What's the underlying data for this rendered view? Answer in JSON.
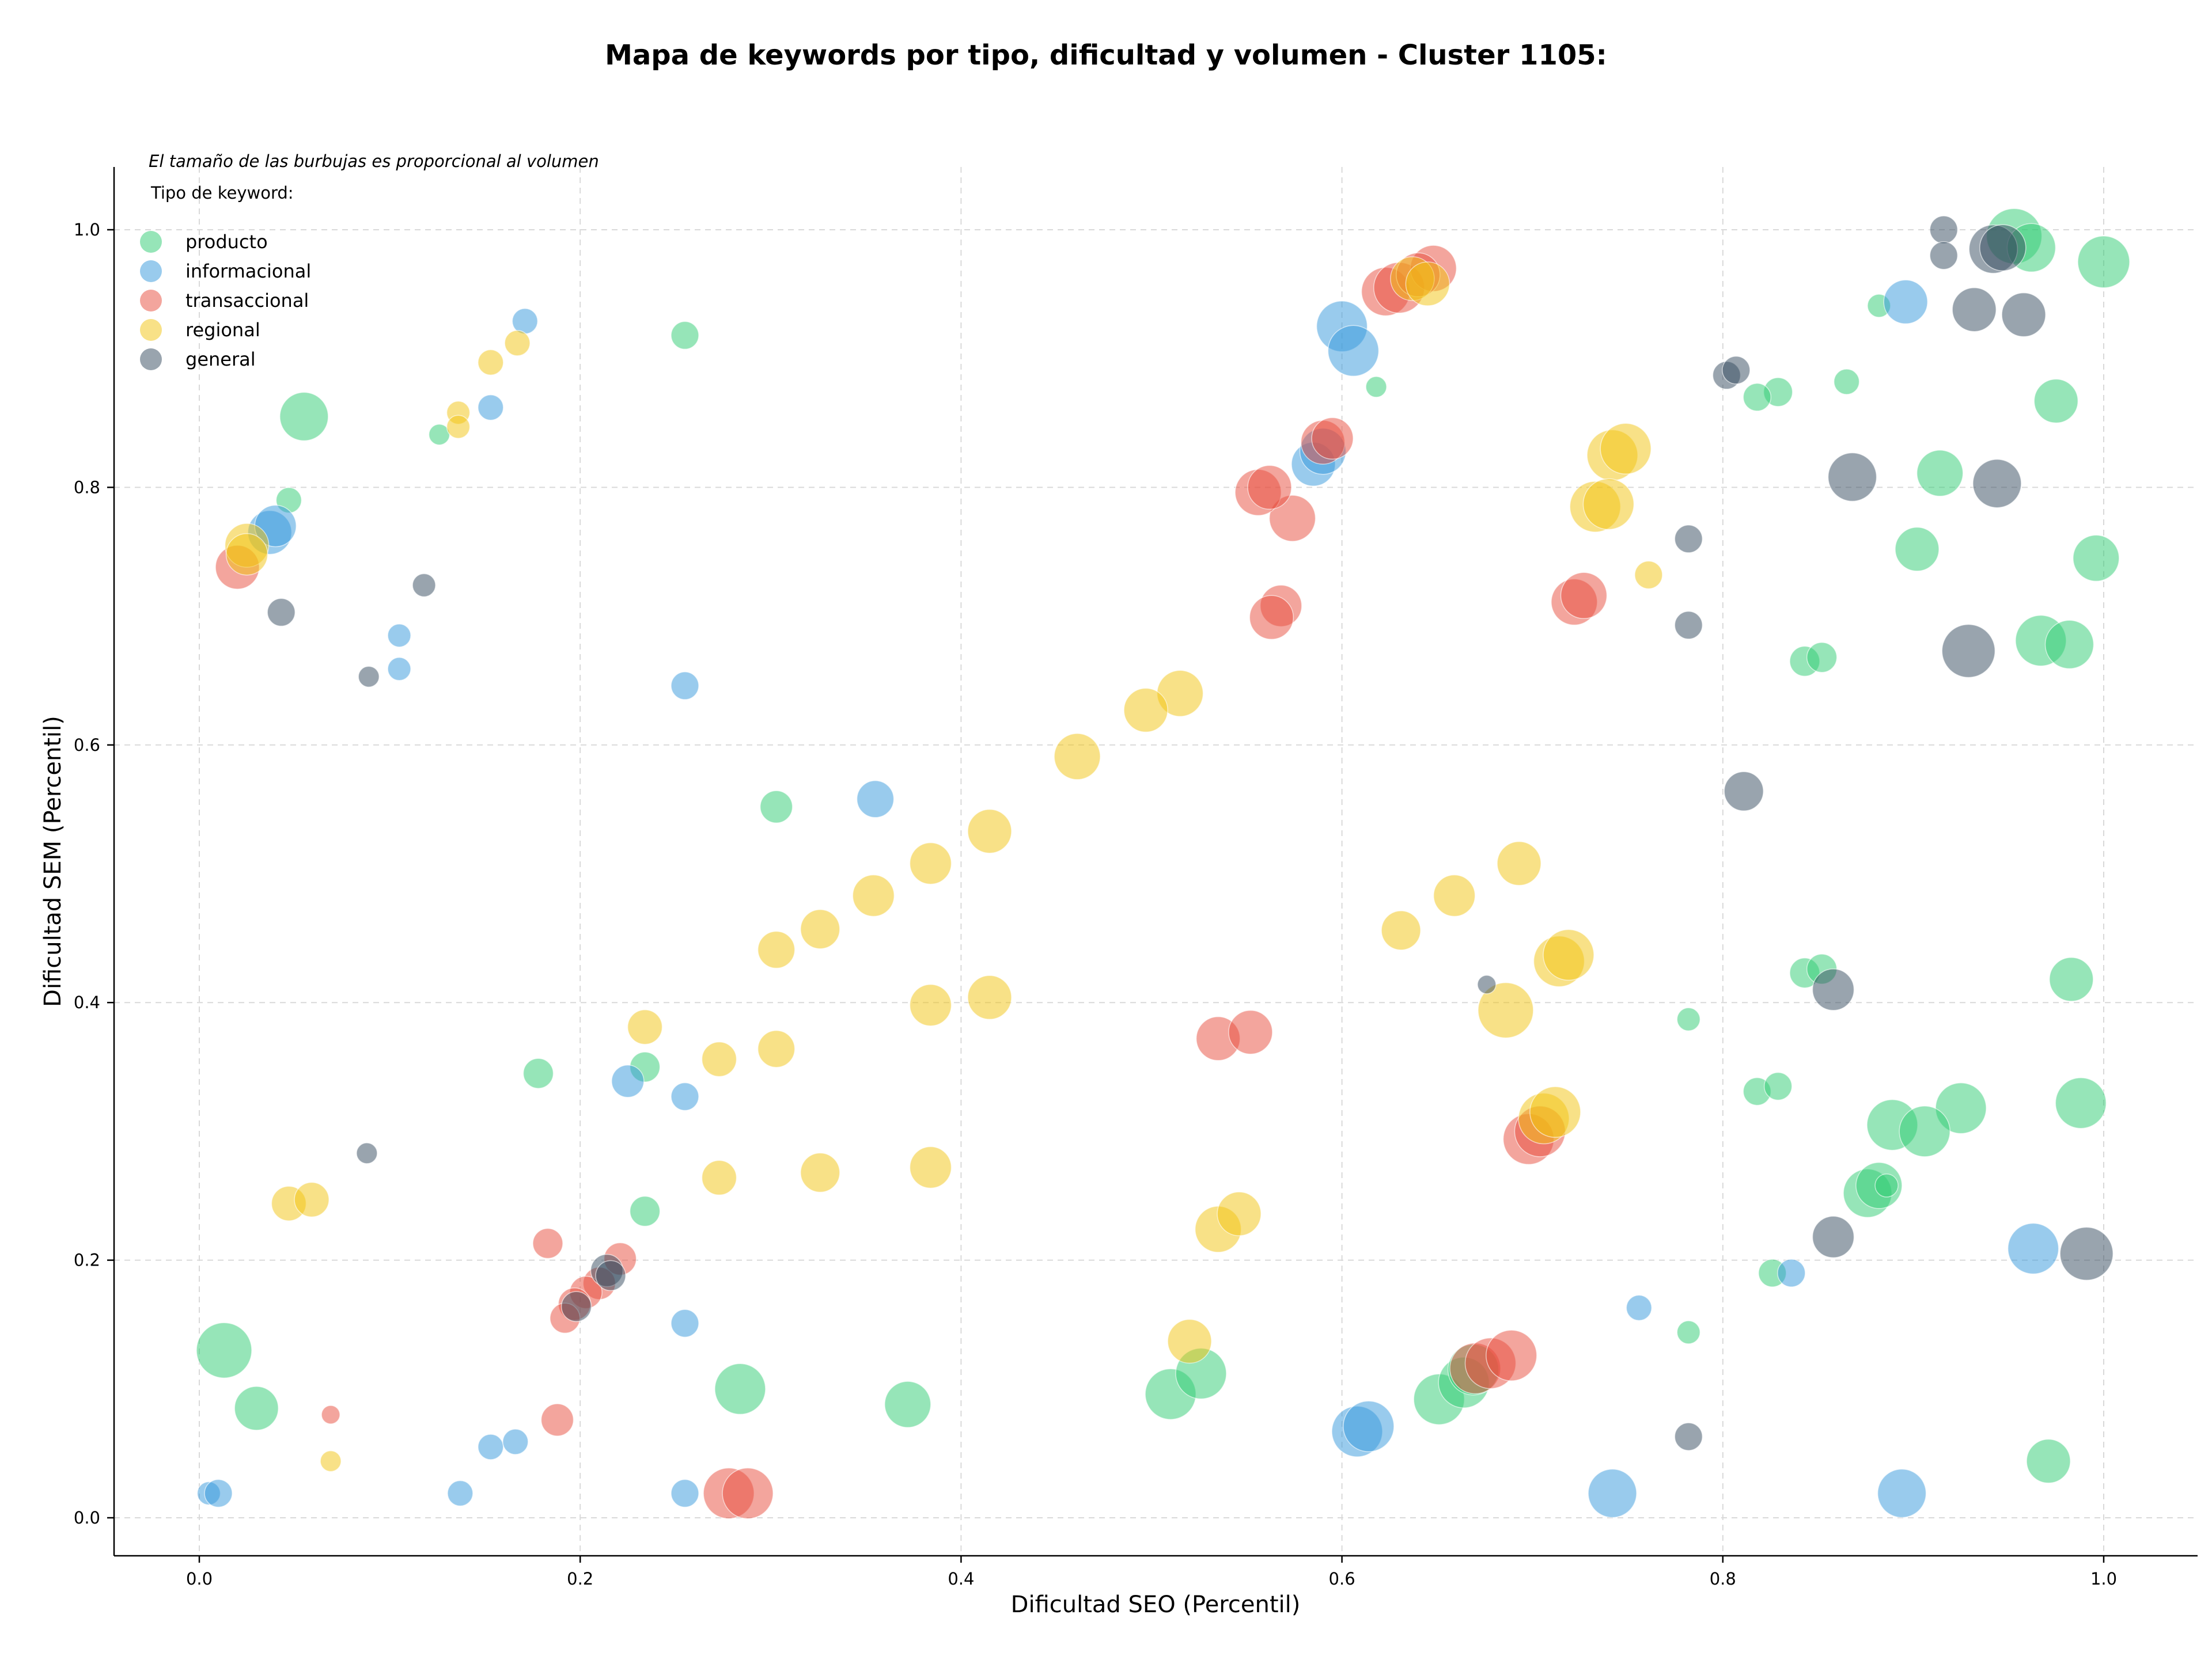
{
  "chart_data": {
    "type": "scatter",
    "title": "Mapa de keywords por tipo, dificultad y volumen - Cluster 1105:",
    "xlabel": "Dificultad SEO (Percentil)",
    "ylabel": "Dificultad SEM (Percentil)",
    "xlim": [
      -0.045,
      1.05
    ],
    "ylim": [
      -0.03,
      1.05
    ],
    "x_ticks": [
      "0.0",
      "0.2",
      "0.4",
      "0.6",
      "0.8",
      "1.0"
    ],
    "y_ticks": [
      "0.0",
      "0.2",
      "0.4",
      "0.6",
      "0.8",
      "1.0"
    ],
    "grid": true,
    "note": "El tamaño de las burbujas es proporcional al volumen",
    "legend": {
      "title": "Tipo de keyword:",
      "position": "top-left",
      "entries": [
        {
          "label": "producto",
          "color": "#2ecc71"
        },
        {
          "label": "informacional",
          "color": "#3498db"
        },
        {
          "label": "transaccional",
          "color": "#e74c3c"
        },
        {
          "label": "regional",
          "color": "#f1c40f"
        },
        {
          "label": "general",
          "color": "#34495e"
        }
      ]
    },
    "series": [
      {
        "name": "producto",
        "color": "#2ecc71",
        "points": [
          [
            0.055,
            0.855,
            42
          ],
          [
            0.047,
            0.79,
            22
          ],
          [
            0.126,
            0.841,
            18
          ],
          [
            0.255,
            0.918,
            24
          ],
          [
            0.618,
            0.878,
            18
          ],
          [
            0.882,
            0.941,
            20
          ],
          [
            0.829,
            0.874,
            25
          ],
          [
            0.818,
            0.87,
            24
          ],
          [
            0.865,
            0.882,
            22
          ],
          [
            0.953,
            0.995,
            48
          ],
          [
            0.962,
            0.986,
            42
          ],
          [
            1.0,
            0.975,
            45
          ],
          [
            0.975,
            0.867,
            38
          ],
          [
            0.914,
            0.811,
            40
          ],
          [
            0.902,
            0.752,
            38
          ],
          [
            0.996,
            0.745,
            40
          ],
          [
            0.967,
            0.681,
            44
          ],
          [
            0.982,
            0.678,
            42
          ],
          [
            0.843,
            0.665,
            26
          ],
          [
            0.852,
            0.668,
            26
          ],
          [
            0.303,
            0.552,
            28
          ],
          [
            0.178,
            0.345,
            26
          ],
          [
            0.234,
            0.35,
            26
          ],
          [
            0.234,
            0.238,
            26
          ],
          [
            0.782,
            0.387,
            20
          ],
          [
            0.843,
            0.423,
            26
          ],
          [
            0.852,
            0.426,
            26
          ],
          [
            0.818,
            0.331,
            24
          ],
          [
            0.829,
            0.335,
            24
          ],
          [
            0.983,
            0.418,
            38
          ],
          [
            0.988,
            0.322,
            44
          ],
          [
            0.889,
            0.305,
            44
          ],
          [
            0.925,
            0.318,
            44
          ],
          [
            0.906,
            0.3,
            44
          ],
          [
            0.876,
            0.252,
            42
          ],
          [
            0.882,
            0.258,
            40
          ],
          [
            0.886,
            0.258,
            20
          ],
          [
            0.826,
            0.19,
            24
          ],
          [
            0.782,
            0.144,
            20
          ],
          [
            0.971,
            0.044,
            38
          ],
          [
            0.013,
            0.13,
            48
          ],
          [
            0.03,
            0.085,
            38
          ],
          [
            0.284,
            0.1,
            44
          ],
          [
            0.372,
            0.088,
            40
          ],
          [
            0.51,
            0.096,
            44
          ],
          [
            0.526,
            0.112,
            44
          ],
          [
            0.651,
            0.092,
            44
          ],
          [
            0.664,
            0.105,
            44
          ],
          [
            0.669,
            0.115,
            44
          ]
        ]
      },
      {
        "name": "informacional",
        "color": "#3498db",
        "points": [
          [
            0.171,
            0.929,
            22
          ],
          [
            0.153,
            0.862,
            22
          ],
          [
            0.037,
            0.765,
            38
          ],
          [
            0.04,
            0.77,
            36
          ],
          [
            0.105,
            0.685,
            20
          ],
          [
            0.105,
            0.659,
            20
          ],
          [
            0.255,
            0.646,
            24
          ],
          [
            0.355,
            0.558,
            32
          ],
          [
            0.6,
            0.925,
            44
          ],
          [
            0.606,
            0.906,
            44
          ],
          [
            0.585,
            0.818,
            38
          ],
          [
            0.59,
            0.828,
            40
          ],
          [
            0.896,
            0.944,
            38
          ],
          [
            0.225,
            0.339,
            28
          ],
          [
            0.255,
            0.327,
            24
          ],
          [
            0.255,
            0.151,
            24
          ],
          [
            0.153,
            0.055,
            22
          ],
          [
            0.166,
            0.059,
            22
          ],
          [
            0.137,
            0.019,
            22
          ],
          [
            0.005,
            0.019,
            20
          ],
          [
            0.01,
            0.019,
            24
          ],
          [
            0.255,
            0.019,
            24
          ],
          [
            0.608,
            0.067,
            44
          ],
          [
            0.614,
            0.071,
            44
          ],
          [
            0.742,
            0.019,
            42
          ],
          [
            0.894,
            0.019,
            42
          ],
          [
            0.963,
            0.209,
            44
          ],
          [
            0.836,
            0.19,
            24
          ],
          [
            0.756,
            0.163,
            22
          ]
        ]
      },
      {
        "name": "transaccional",
        "color": "#e74c3c",
        "points": [
          [
            0.02,
            0.738,
            38
          ],
          [
            0.568,
            0.708,
            36
          ],
          [
            0.563,
            0.699,
            38
          ],
          [
            0.574,
            0.776,
            40
          ],
          [
            0.556,
            0.796,
            40
          ],
          [
            0.562,
            0.8,
            38
          ],
          [
            0.59,
            0.835,
            38
          ],
          [
            0.595,
            0.838,
            36
          ],
          [
            0.623,
            0.952,
            42
          ],
          [
            0.63,
            0.955,
            44
          ],
          [
            0.648,
            0.97,
            40
          ],
          [
            0.64,
            0.965,
            38
          ],
          [
            0.722,
            0.711,
            40
          ],
          [
            0.727,
            0.716,
            40
          ],
          [
            0.535,
            0.372,
            38
          ],
          [
            0.552,
            0.377,
            38
          ],
          [
            0.698,
            0.294,
            44
          ],
          [
            0.704,
            0.3,
            44
          ],
          [
            0.183,
            0.213,
            26
          ],
          [
            0.221,
            0.201,
            28
          ],
          [
            0.21,
            0.182,
            28
          ],
          [
            0.203,
            0.175,
            28
          ],
          [
            0.197,
            0.166,
            28
          ],
          [
            0.192,
            0.155,
            26
          ],
          [
            0.188,
            0.076,
            28
          ],
          [
            0.069,
            0.08,
            16
          ],
          [
            0.278,
            0.019,
            44
          ],
          [
            0.288,
            0.019,
            44
          ],
          [
            0.67,
            0.116,
            44
          ],
          [
            0.678,
            0.12,
            44
          ],
          [
            0.689,
            0.126,
            44
          ]
        ]
      },
      {
        "name": "regional",
        "color": "#f1c40f",
        "points": [
          [
            0.167,
            0.912,
            22
          ],
          [
            0.153,
            0.897,
            22
          ],
          [
            0.136,
            0.858,
            20
          ],
          [
            0.136,
            0.847,
            20
          ],
          [
            0.025,
            0.755,
            38
          ],
          [
            0.025,
            0.748,
            36
          ],
          [
            0.637,
            0.962,
            38
          ],
          [
            0.645,
            0.958,
            38
          ],
          [
            0.742,
            0.825,
            44
          ],
          [
            0.749,
            0.83,
            44
          ],
          [
            0.733,
            0.785,
            44
          ],
          [
            0.74,
            0.787,
            44
          ],
          [
            0.761,
            0.732,
            24
          ],
          [
            0.515,
            0.64,
            40
          ],
          [
            0.497,
            0.627,
            38
          ],
          [
            0.461,
            0.591,
            40
          ],
          [
            0.415,
            0.533,
            38
          ],
          [
            0.384,
            0.508,
            36
          ],
          [
            0.354,
            0.483,
            36
          ],
          [
            0.326,
            0.457,
            34
          ],
          [
            0.303,
            0.441,
            32
          ],
          [
            0.303,
            0.364,
            32
          ],
          [
            0.384,
            0.398,
            36
          ],
          [
            0.415,
            0.404,
            38
          ],
          [
            0.273,
            0.356,
            30
          ],
          [
            0.234,
            0.381,
            30
          ],
          [
            0.273,
            0.264,
            30
          ],
          [
            0.326,
            0.268,
            34
          ],
          [
            0.384,
            0.272,
            36
          ],
          [
            0.047,
            0.244,
            30
          ],
          [
            0.059,
            0.247,
            30
          ],
          [
            0.069,
            0.044,
            18
          ],
          [
            0.631,
            0.456,
            34
          ],
          [
            0.659,
            0.483,
            36
          ],
          [
            0.693,
            0.508,
            38
          ],
          [
            0.686,
            0.394,
            48
          ],
          [
            0.714,
            0.432,
            44
          ],
          [
            0.719,
            0.437,
            44
          ],
          [
            0.706,
            0.31,
            44
          ],
          [
            0.712,
            0.315,
            44
          ],
          [
            0.535,
            0.224,
            40
          ],
          [
            0.546,
            0.236,
            38
          ],
          [
            0.52,
            0.137,
            38
          ]
        ]
      },
      {
        "name": "general",
        "color": "#34495e",
        "points": [
          [
            0.043,
            0.703,
            24
          ],
          [
            0.089,
            0.653,
            18
          ],
          [
            0.118,
            0.724,
            20
          ],
          [
            0.088,
            0.283,
            18
          ],
          [
            0.916,
            1.0,
            24
          ],
          [
            0.916,
            0.98,
            24
          ],
          [
            0.942,
            0.985,
            42
          ],
          [
            0.947,
            0.986,
            40
          ],
          [
            0.932,
            0.938,
            38
          ],
          [
            0.958,
            0.934,
            38
          ],
          [
            0.802,
            0.887,
            24
          ],
          [
            0.807,
            0.891,
            24
          ],
          [
            0.868,
            0.808,
            42
          ],
          [
            0.944,
            0.803,
            42
          ],
          [
            0.782,
            0.76,
            24
          ],
          [
            0.782,
            0.693,
            24
          ],
          [
            0.929,
            0.673,
            46
          ],
          [
            0.811,
            0.564,
            34
          ],
          [
            0.676,
            0.414,
            16
          ],
          [
            0.858,
            0.41,
            36
          ],
          [
            0.858,
            0.218,
            36
          ],
          [
            0.991,
            0.205,
            46
          ],
          [
            0.214,
            0.192,
            28
          ],
          [
            0.216,
            0.188,
            26
          ],
          [
            0.198,
            0.164,
            26
          ],
          [
            0.782,
            0.063,
            24
          ]
        ]
      }
    ]
  }
}
